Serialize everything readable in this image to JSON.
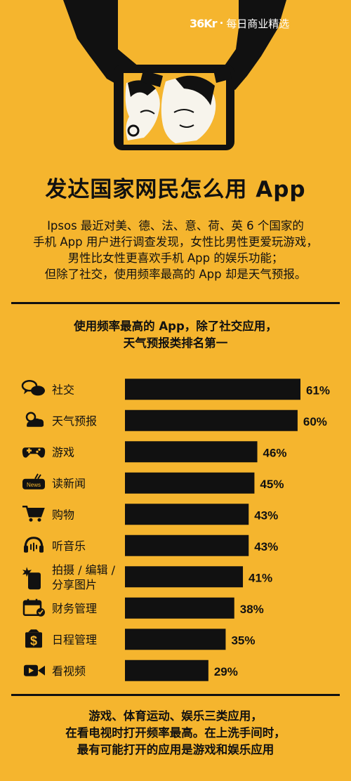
{
  "brand": {
    "logo": "36Kr",
    "separator": "·",
    "tagline": "每日商业精选"
  },
  "title": "发达国家网民怎么用 App",
  "intro": [
    "Ipsos 最近对美、德、法、意、荷、英 6 个国家的",
    "手机 App 用户进行调查发现，女性比男性更爱玩游戏，",
    "男性比女性更喜欢手机 App 的娱乐功能；",
    "但除了社交，使用频率最高的 App 却是天气预报。"
  ],
  "chart_title": [
    "使用频率最高的 App，除了社交应用，",
    "天气预报类排名第一"
  ],
  "chart_data": {
    "type": "bar",
    "orientation": "horizontal",
    "categories": [
      "社交",
      "天气预报",
      "游戏",
      "读新闻",
      "购物",
      "听音乐",
      "拍摄 / 编辑 /|分享图片",
      "财务管理",
      "日程管理",
      "看视频"
    ],
    "icons": [
      "chat-bubbles-icon",
      "weather-icon",
      "gamepad-icon",
      "news-icon",
      "cart-icon",
      "headphones-icon",
      "phone-camera-icon",
      "calendar-finance-icon",
      "dollar-icon",
      "video-icon"
    ],
    "values": [
      61,
      60,
      46,
      45,
      43,
      43,
      41,
      38,
      35,
      29
    ],
    "value_suffix": "%",
    "bar_color": "#111111",
    "xlim": [
      0,
      61
    ]
  },
  "footer": [
    "游戏、体育运动、娱乐三类应用，",
    "在看电视时打开频率最高。在上洗手间时，",
    "最有可能打开的应用是游戏和娱乐应用"
  ],
  "colors": {
    "background": "#f5b52e",
    "ink": "#111111",
    "skin": "#f7f4ec"
  }
}
